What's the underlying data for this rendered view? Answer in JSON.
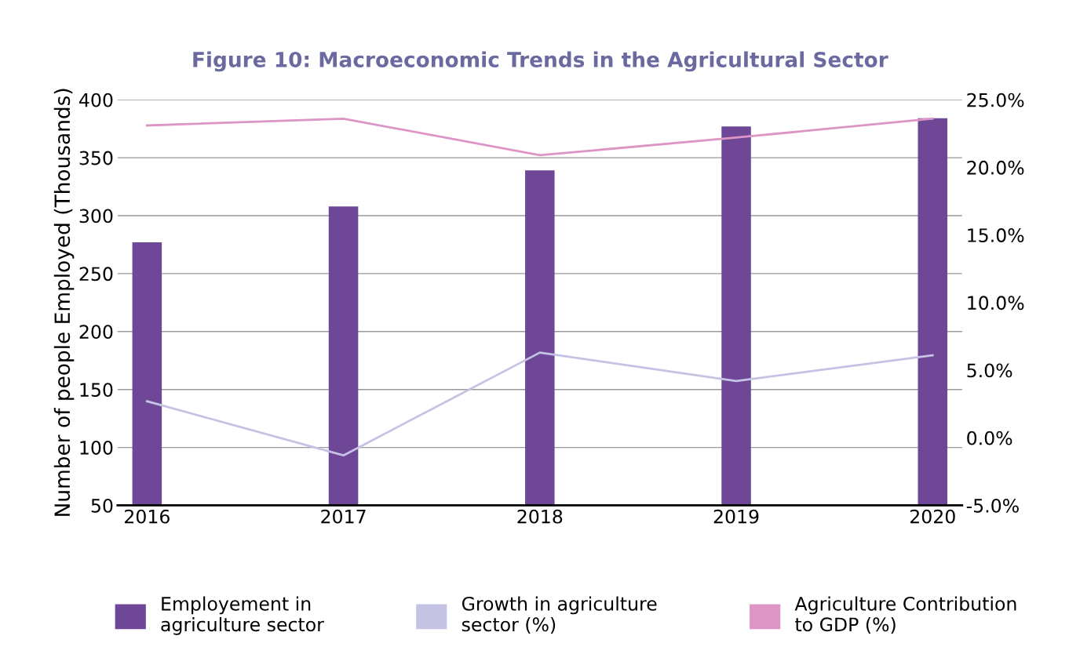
{
  "chart_data": {
    "type": "bar",
    "title": "Figure 10: Macroeconomic Trends in the Agricultural Sector",
    "ylabel": "Number of people Employed (Thousands)",
    "categories": [
      "2016",
      "2017",
      "2018",
      "2019",
      "2020"
    ],
    "series": [
      {
        "name": "Employement in agriculture sector",
        "color": "#6f4797",
        "values": [
          277,
          308,
          339,
          377,
          384
        ]
      },
      {
        "name": "Growth in agriculture sector (%)",
        "type": "line",
        "axis": "y2",
        "color": "#c5c3e3",
        "values": [
          2.7,
          -1.3,
          6.3,
          4.2,
          6.1
        ]
      },
      {
        "name": "Agriculture Contribution to GDP (%)",
        "type": "line",
        "axis": "y2",
        "color": "#dc95c4",
        "values": [
          23.1,
          23.6,
          20.9,
          22.2,
          23.6
        ]
      }
    ],
    "ylim": [
      50,
      400
    ],
    "yticks": [
      50,
      100,
      150,
      200,
      250,
      300,
      350,
      400
    ],
    "y2lim": [
      -5,
      25
    ],
    "y2ticks": [
      {
        "value": -5,
        "label": "-5.0%"
      },
      {
        "value": 0,
        "label": "0.0%"
      },
      {
        "value": 5,
        "label": "5.0%"
      },
      {
        "value": 10,
        "label": "10.0%"
      },
      {
        "value": 15,
        "label": "15.0%"
      },
      {
        "value": 20,
        "label": "20.0%"
      },
      {
        "value": 25,
        "label": "25.0%"
      }
    ],
    "grid": "y",
    "legend": "bottom"
  }
}
